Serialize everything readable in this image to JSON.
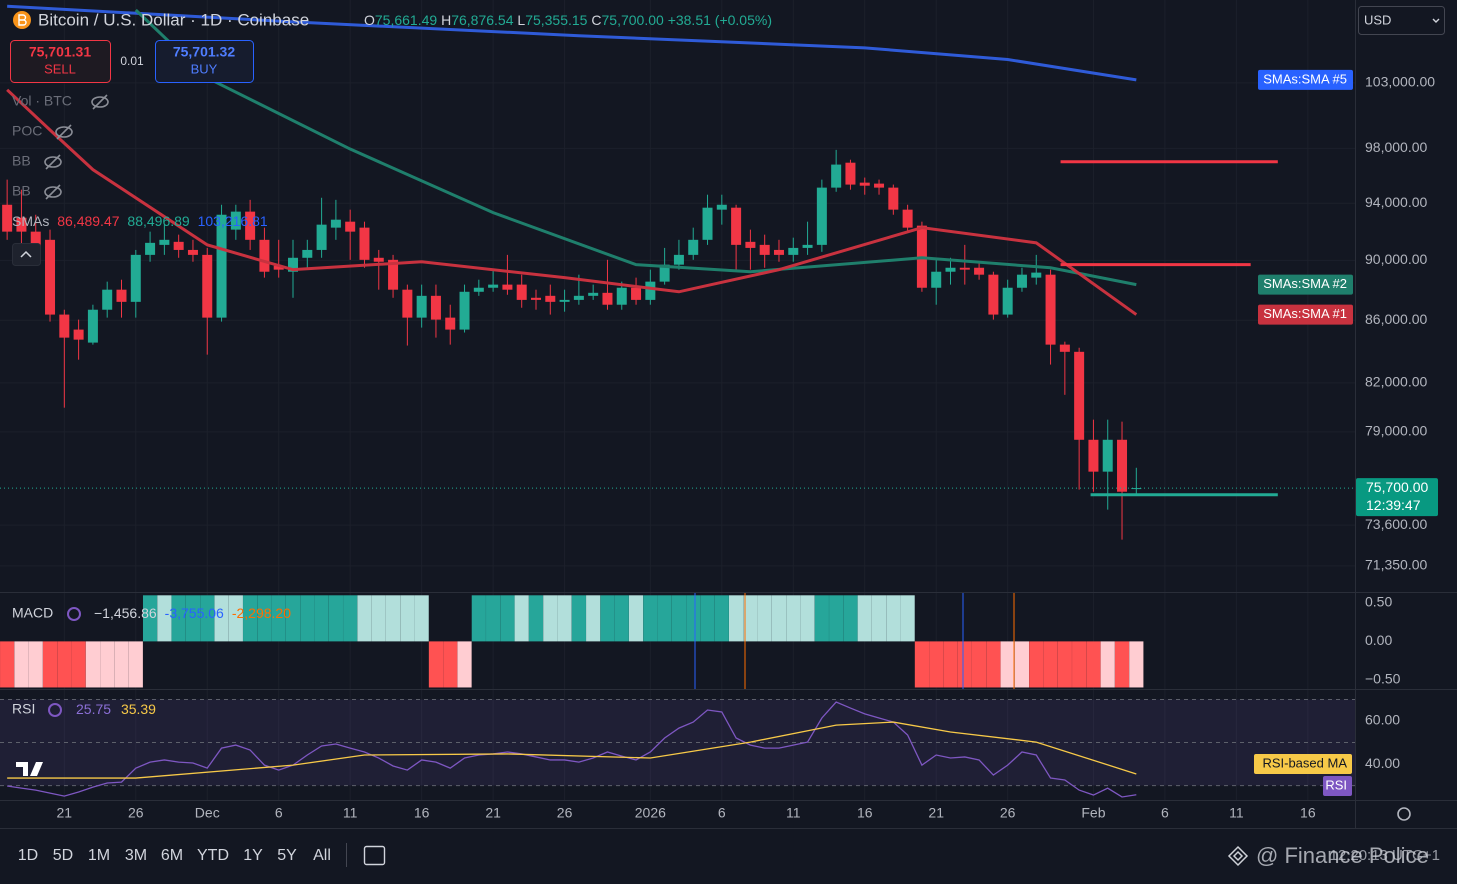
{
  "header": {
    "title": "Bitcoin / U.S. Dollar · 1D · Coinbase",
    "ohlc_keys": [
      "O",
      "H",
      "L",
      "C"
    ],
    "change": "+38.51 (+0.05%)"
  },
  "trade": {
    "sell_price": "75,701.31",
    "sell": "SELL",
    "spread": "0.01",
    "buy_price": "75,701.32",
    "buy": "BUY"
  },
  "currency": "USD",
  "indicators": [
    "Vol · BTC",
    "POC",
    "BB",
    "BB"
  ],
  "sma_legend": {
    "name": "SMAs",
    "values": [
      "86,489.47",
      "88,496.89",
      "103,216.81"
    ]
  },
  "toolbar": {
    "ranges": [
      "1D",
      "5D",
      "1M",
      "3M",
      "6M",
      "YTD",
      "1Y",
      "5Y",
      "All"
    ],
    "watermark": "@ Finance Police",
    "clock": "12:20:13 UTC+1"
  },
  "chart_data": {
    "type": "candlestick",
    "log_scale": true,
    "grid": true,
    "up_color": "#22ab94",
    "down_color": "#f23645",
    "xlim": [
      -0.5,
      94.3
    ],
    "xticks": [
      {
        "value": 4,
        "label": "21"
      },
      {
        "value": 9,
        "label": "26"
      },
      {
        "value": 14,
        "label": "Dec"
      },
      {
        "value": 19,
        "label": "6"
      },
      {
        "value": 24,
        "label": "11"
      },
      {
        "value": 29,
        "label": "16"
      },
      {
        "value": 34,
        "label": "21"
      },
      {
        "value": 39,
        "label": "26"
      },
      {
        "value": 45,
        "label": "2026"
      },
      {
        "value": 50,
        "label": "6"
      },
      {
        "value": 55,
        "label": "11"
      },
      {
        "value": 60,
        "label": "16"
      },
      {
        "value": 65,
        "label": "21"
      },
      {
        "value": 70,
        "label": "26"
      },
      {
        "value": 76,
        "label": "Feb"
      },
      {
        "value": 81,
        "label": "6"
      },
      {
        "value": 86,
        "label": "11"
      },
      {
        "value": 91,
        "label": "16"
      }
    ],
    "ylim": [
      69950,
      109700
    ],
    "yticks": [
      {
        "value": 103000,
        "label": "103,000.00"
      },
      {
        "value": 98000,
        "label": "98,000.00"
      },
      {
        "value": 94000,
        "label": "94,000.00"
      },
      {
        "value": 90000,
        "label": "90,000.00"
      },
      {
        "value": 86000,
        "label": "86,000.00"
      },
      {
        "value": 82000,
        "label": "82,000.00"
      },
      {
        "value": 79000,
        "label": "79,000.00"
      },
      {
        "value": 73600,
        "label": "73,600.00"
      },
      {
        "value": 71350,
        "label": "71,350.00"
      }
    ],
    "candles": {
      "open": [
        93890,
        92970,
        91990,
        91420,
        86370,
        85390,
        84550,
        86690,
        88020,
        87210,
        90380,
        91070,
        91280,
        90720,
        90380,
        86170,
        92130,
        93400,
        91420,
        89640,
        89230,
        90180,
        90720,
        92270,
        92690,
        92270,
        90180,
        90040,
        88020,
        86170,
        87610,
        86170,
        85390,
        87880,
        88150,
        88360,
        88360,
        87480,
        87610,
        87210,
        87340,
        87610,
        87810,
        87020,
        88150,
        87340,
        88560,
        89710,
        90380,
        91420,
        93540,
        93680,
        91280,
        91070,
        90720,
        90380,
        90860,
        91070,
        95120,
        96940,
        95480,
        95410,
        95120,
        93540,
        92410,
        88150,
        89230,
        89500,
        89500,
        89030,
        86370,
        88150,
        88830,
        89030,
        84420,
        83960,
        78530,
        76650,
        78530,
        75661.49
      ],
      "high": [
        95700,
        94970,
        93180,
        92130,
        86690,
        86040,
        87020,
        88560,
        88690,
        90720,
        91990,
        92480,
        91780,
        91420,
        90860,
        93890,
        93890,
        94240,
        92270,
        91420,
        91420,
        91420,
        94390,
        94240,
        93540,
        92690,
        90720,
        90380,
        88360,
        88360,
        88360,
        87020,
        88360,
        88690,
        89370,
        90380,
        89030,
        88020,
        88360,
        88020,
        89030,
        88360,
        90040,
        88560,
        88830,
        89370,
        90860,
        91420,
        92270,
        94610,
        94610,
        93890,
        92130,
        91780,
        91420,
        91570,
        92690,
        95700,
        97890,
        97160,
        95850,
        95700,
        95340,
        93890,
        92690,
        90180,
        90180,
        91070,
        89910,
        89230,
        88690,
        89500,
        90380,
        89370,
        84610,
        84220,
        79740,
        79740,
        79620,
        76876.54
      ],
      "low": [
        91420,
        91070,
        89710,
        85910,
        80470,
        83460,
        84420,
        86170,
        86170,
        86170,
        89910,
        90380,
        90180,
        89910,
        83780,
        85910,
        91420,
        90720,
        88830,
        88830,
        87480,
        89500,
        90180,
        91420,
        90040,
        89500,
        88020,
        87480,
        84360,
        85520,
        84870,
        84420,
        85200,
        87610,
        87880,
        87680,
        86820,
        86690,
        86370,
        86560,
        87020,
        87340,
        86690,
        86690,
        87020,
        87020,
        88360,
        89370,
        90040,
        91070,
        92480,
        89370,
        89370,
        89500,
        89910,
        89910,
        90380,
        90590,
        94820,
        94970,
        94610,
        94610,
        93180,
        91990,
        87880,
        87020,
        88360,
        88360,
        88690,
        86040,
        86170,
        87880,
        88360,
        83150,
        81260,
        75610,
        75490,
        74470,
        72790,
        75355.15
      ],
      "close": [
        91990,
        91990,
        90380,
        86370,
        84870,
        84740,
        86690,
        88020,
        87210,
        90380,
        91210,
        91420,
        90720,
        90380,
        86170,
        93180,
        93400,
        91420,
        89230,
        89370,
        90180,
        90720,
        92480,
        92830,
        91990,
        90040,
        89910,
        88020,
        86170,
        87610,
        86040,
        85390,
        87880,
        88150,
        88360,
        88020,
        87340,
        87340,
        87210,
        87340,
        87610,
        87810,
        87020,
        88150,
        87340,
        88560,
        89710,
        90380,
        91420,
        93680,
        93890,
        91070,
        90860,
        90380,
        90380,
        90860,
        91070,
        95120,
        96800,
        95340,
        95260,
        95120,
        93540,
        92270,
        88150,
        89230,
        89500,
        89370,
        89030,
        86370,
        88150,
        89030,
        89170,
        84420,
        83960,
        78530,
        76650,
        78530,
        75490,
        75700
      ]
    },
    "last_labels": {
      "open": "75,661.49",
      "high": "76,876.54",
      "low": "75,355.15",
      "close": "75,700.00"
    },
    "countdown": "12:39:47",
    "sma": [
      {
        "name": "SMAs:SMA #5",
        "color": "#2f5bd8",
        "x": [
          0,
          20,
          40,
          60,
          70,
          79
        ],
        "values": [
          109180,
          107890,
          106760,
          105780,
          104850,
          103240
        ]
      },
      {
        "name": "SMAs:SMA #2",
        "color": "#1f7f6c",
        "x": [
          9,
          14,
          24,
          34,
          44,
          52,
          64,
          73,
          79
        ],
        "values": [
          108870,
          103390,
          97950,
          93330,
          89710,
          89230,
          90180,
          89500,
          88360
        ]
      },
      {
        "name": "SMAs:SMA #1",
        "color": "#c8323f",
        "x": [
          0,
          3,
          6,
          14,
          20,
          29,
          39,
          47,
          54,
          64,
          72,
          79
        ],
        "values": [
          102460,
          99380,
          96430,
          91070,
          89370,
          89910,
          88830,
          87880,
          89370,
          92270,
          91210,
          86370
        ]
      }
    ],
    "drawings": [
      {
        "color": "#f23645",
        "value": 97010,
        "x": [
          73.7,
          88.9
        ]
      },
      {
        "color": "#f23645",
        "value": 89710,
        "x": [
          73.7,
          87.0
        ]
      },
      {
        "color": "#22ab94",
        "value": 75320,
        "x": [
          75.8,
          88.9
        ]
      }
    ],
    "macd": {
      "name": "MACD",
      "legend": [
        {
          "text": "−1,456.86",
          "color": "#d1d4dc"
        },
        {
          "text": "-3,755.06",
          "color": "#2962ff"
        },
        {
          "text": "-2,298.20",
          "color": "#ff6d00"
        }
      ],
      "ylim": [
        -0.62,
        0.63
      ],
      "yticks": [
        {
          "value": 0.5,
          "label": "0.50"
        },
        {
          "value": 0,
          "label": "0.00"
        },
        {
          "value": -0.5,
          "label": "−0.50"
        }
      ],
      "histogram": [
        -0.6,
        -0.6,
        -0.6,
        -0.6,
        -0.6,
        -0.6,
        -0.6,
        -0.6,
        -0.6,
        -0.6,
        0.6,
        0.6,
        0.6,
        0.6,
        0.6,
        0.6,
        0.6,
        0.6,
        0.6,
        0.6,
        0.6,
        0.6,
        0.6,
        0.6,
        0.6,
        0.6,
        0.6,
        0.6,
        0.6,
        0.6,
        -0.6,
        -0.6,
        -0.6,
        0.6,
        0.6,
        0.6,
        0.6,
        0.6,
        0.6,
        0.6,
        0.6,
        0.6,
        0.6,
        0.6,
        0.6,
        0.6,
        0.6,
        0.6,
        0.6,
        0.6,
        0.6,
        0.6,
        0.6,
        0.6,
        0.6,
        0.6,
        0.6,
        0.6,
        0.6,
        0.6,
        0.6,
        0.6,
        0.6,
        0.6,
        -0.6,
        -0.6,
        -0.6,
        -0.6,
        -0.6,
        -0.6,
        -0.6,
        -0.6,
        -0.6,
        -0.6,
        -0.6,
        -0.6,
        -0.6,
        -0.6,
        -0.6,
        -0.6
      ],
      "histogram_colors": [
        "#ff5252",
        "#ffcdd2",
        "#ffcdd2",
        "#ff5252",
        "#ff5252",
        "#ff5252",
        "#ffcdd2",
        "#ffcdd2",
        "#ffcdd2",
        "#ffcdd2",
        "#26a69a",
        "#b2dfdb",
        "#26a69a",
        "#26a69a",
        "#26a69a",
        "#b2dfdb",
        "#b2dfdb",
        "#26a69a",
        "#26a69a",
        "#26a69a",
        "#26a69a",
        "#26a69a",
        "#26a69a",
        "#26a69a",
        "#26a69a",
        "#b2dfdb",
        "#b2dfdb",
        "#b2dfdb",
        "#b2dfdb",
        "#b2dfdb",
        "#ff5252",
        "#ff5252",
        "#ffcdd2",
        "#26a69a",
        "#26a69a",
        "#26a69a",
        "#b2dfdb",
        "#26a69a",
        "#b2dfdb",
        "#b2dfdb",
        "#26a69a",
        "#b2dfdb",
        "#26a69a",
        "#26a69a",
        "#b2dfdb",
        "#26a69a",
        "#26a69a",
        "#26a69a",
        "#26a69a",
        "#26a69a",
        "#26a69a",
        "#b2dfdb",
        "#b2dfdb",
        "#b2dfdb",
        "#b2dfdb",
        "#b2dfdb",
        "#b2dfdb",
        "#26a69a",
        "#26a69a",
        "#26a69a",
        "#b2dfdb",
        "#b2dfdb",
        "#b2dfdb",
        "#b2dfdb",
        "#ff5252",
        "#ff5252",
        "#ff5252",
        "#ff5252",
        "#ff5252",
        "#ff5252",
        "#ffcdd2",
        "#ffcdd2",
        "#ff5252",
        "#ff5252",
        "#ff5252",
        "#ff5252",
        "#ff5252",
        "#ffcdd2",
        "#ff5252",
        "#ffcdd2"
      ]
    },
    "rsi": {
      "name": "RSI",
      "ylim": [
        23.3,
        74.4
      ],
      "yticks": [
        {
          "value": 60,
          "label": "60.00"
        },
        {
          "value": 40,
          "label": "40.00"
        }
      ],
      "bands": [
        70,
        50,
        30
      ],
      "series": [
        {
          "name": "RSI",
          "color": "#7e57c2",
          "values": [
            29.8,
            28.8,
            27.9,
            26.5,
            25.1,
            27.0,
            29.3,
            31.2,
            31.6,
            38.1,
            40.9,
            41.9,
            40.9,
            40.5,
            38.1,
            47.4,
            48.8,
            46.5,
            39.5,
            37.2,
            39.5,
            44.2,
            48.4,
            49.3,
            47.4,
            45.6,
            42.8,
            39.1,
            37.2,
            41.9,
            40.9,
            38.1,
            42.8,
            44.2,
            44.7,
            45.6,
            44.7,
            43.3,
            41.9,
            41.9,
            40.9,
            42.8,
            45.6,
            43.7,
            41.9,
            45.6,
            52.1,
            56.7,
            59.5,
            65.1,
            64.2,
            52.1,
            48.8,
            47.4,
            47.4,
            48.8,
            50.2,
            61.4,
            68.8,
            66.0,
            63.3,
            61.4,
            59.5,
            53.5,
            39.5,
            44.2,
            42.8,
            43.3,
            41.9,
            34.9,
            39.5,
            45.6,
            44.2,
            33.5,
            32.6,
            27.9,
            25.6,
            28.8,
            24.7,
            25.75
          ]
        },
        {
          "name": "RSI-based MA",
          "color": "#f7c948",
          "x": [
            0,
            9,
            20,
            25,
            35,
            45,
            52,
            58,
            62,
            66,
            72,
            79
          ],
          "values": [
            33.5,
            33.5,
            39.5,
            44.2,
            44.7,
            42.8,
            50.2,
            58.1,
            59.5,
            54.9,
            50.2,
            35.39
          ]
        }
      ]
    }
  }
}
